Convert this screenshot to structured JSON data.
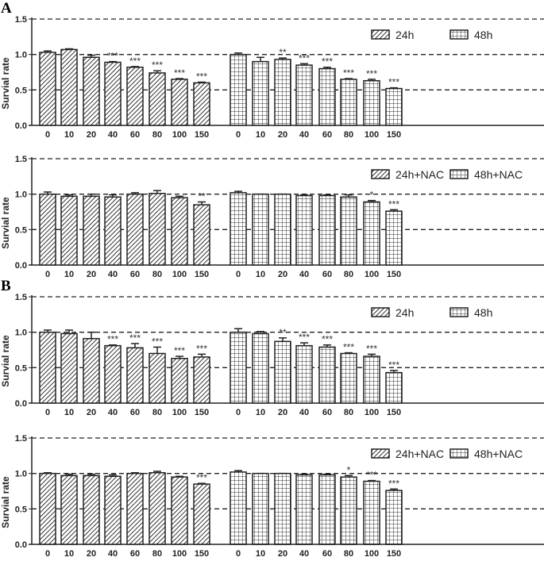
{
  "chart_data": [
    {
      "panel": "A",
      "type": "bar",
      "ylabel": "Survial rate",
      "ylim": [
        0,
        1.5
      ],
      "yticks": [
        "0.0",
        "0.5",
        "1.0",
        "1.5"
      ],
      "grid": "dashed at 0.5, 1.0, 1.5",
      "legend_position": "top-right",
      "categories": [
        "0",
        "10",
        "20",
        "40",
        "60",
        "80",
        "100",
        "150"
      ],
      "series": [
        {
          "name": "24h",
          "pattern": "diagonal-hatch",
          "values": [
            1.03,
            1.07,
            0.96,
            0.89,
            0.82,
            0.74,
            0.65,
            0.6
          ],
          "errors": [
            0.02,
            0.01,
            0.03,
            0.01,
            0.01,
            0.03,
            0.01,
            0.01
          ],
          "significance": [
            "",
            "",
            "",
            "***",
            "***",
            "***",
            "***",
            "***"
          ]
        },
        {
          "name": "48h",
          "pattern": "grid",
          "values": [
            1.0,
            0.9,
            0.93,
            0.85,
            0.8,
            0.65,
            0.63,
            0.52
          ],
          "errors": [
            0.02,
            0.06,
            0.02,
            0.02,
            0.02,
            0.01,
            0.02,
            0.01
          ],
          "significance": [
            "",
            "",
            "**",
            "***",
            "***",
            "***",
            "***",
            "***"
          ]
        }
      ]
    },
    {
      "panel": "",
      "type": "bar",
      "ylabel": "Survial rate",
      "ylim": [
        0,
        1.5
      ],
      "yticks": [
        "0.0",
        "0.5",
        "1.0",
        "1.5"
      ],
      "grid": "dashed at 0.5, 1.0, 1.5",
      "legend_position": "top-right",
      "categories": [
        "0",
        "10",
        "20",
        "40",
        "60",
        "80",
        "100",
        "150"
      ],
      "series": [
        {
          "name": "24h+NAC",
          "pattern": "diagonal-hatch",
          "values": [
            1.0,
            0.97,
            0.97,
            0.96,
            1.0,
            1.01,
            0.95,
            0.85
          ],
          "errors": [
            0.03,
            0.02,
            0.03,
            0.03,
            0.02,
            0.04,
            0.02,
            0.04
          ],
          "significance": [
            "",
            "",
            "",
            "",
            "",
            "",
            "",
            "**"
          ]
        },
        {
          "name": "48h+NAC",
          "pattern": "grid",
          "values": [
            1.02,
            1.0,
            1.0,
            0.98,
            0.98,
            0.96,
            0.89,
            0.76
          ],
          "errors": [
            0.02,
            0.0,
            0.0,
            0.01,
            0.01,
            0.03,
            0.02,
            0.02
          ],
          "significance": [
            "",
            "",
            "",
            "",
            "",
            "",
            "*",
            "***"
          ]
        }
      ]
    },
    {
      "panel": "B",
      "type": "bar",
      "ylabel": "Survial rate",
      "ylim": [
        0,
        1.5
      ],
      "yticks": [
        "0.0",
        "0.5",
        "1.0",
        "1.5"
      ],
      "grid": "dashed at 0.5, 1.0, 1.5",
      "legend_position": "top-right",
      "categories": [
        "0",
        "10",
        "20",
        "40",
        "60",
        "80",
        "100",
        "150"
      ],
      "series": [
        {
          "name": "24h",
          "pattern": "diagonal-hatch",
          "values": [
            1.0,
            0.98,
            0.91,
            0.81,
            0.78,
            0.7,
            0.63,
            0.65
          ],
          "errors": [
            0.03,
            0.05,
            0.09,
            0.01,
            0.06,
            0.09,
            0.03,
            0.04
          ],
          "significance": [
            "",
            "",
            "",
            "***",
            "***",
            "***",
            "***",
            "***"
          ]
        },
        {
          "name": "48h",
          "pattern": "grid",
          "values": [
            1.0,
            0.98,
            0.87,
            0.81,
            0.79,
            0.7,
            0.66,
            0.43
          ],
          "errors": [
            0.05,
            0.03,
            0.05,
            0.04,
            0.03,
            0.01,
            0.03,
            0.03
          ],
          "significance": [
            "",
            "",
            "**",
            "***",
            "***",
            "***",
            "***",
            "***"
          ]
        }
      ]
    },
    {
      "panel": "",
      "type": "bar",
      "ylabel": "Survial rate",
      "ylim": [
        0,
        1.5
      ],
      "yticks": [
        "0.0",
        "0.5",
        "1.0",
        "1.5"
      ],
      "grid": "dashed at 0.5, 1.0, 1.5",
      "legend_position": "top-right",
      "categories": [
        "0",
        "10",
        "20",
        "40",
        "60",
        "80",
        "100",
        "150"
      ],
      "series": [
        {
          "name": "24h+NAC",
          "pattern": "diagonal-hatch",
          "values": [
            1.0,
            0.97,
            0.97,
            0.96,
            1.0,
            1.01,
            0.95,
            0.85
          ],
          "errors": [
            0.01,
            0.02,
            0.02,
            0.02,
            0.01,
            0.02,
            0.01,
            0.01
          ],
          "significance": [
            "",
            "",
            "",
            "",
            "",
            "",
            "",
            "***"
          ]
        },
        {
          "name": "48h+NAC",
          "pattern": "grid",
          "values": [
            1.02,
            1.0,
            1.0,
            0.98,
            0.98,
            0.95,
            0.89,
            0.76
          ],
          "errors": [
            0.02,
            0.0,
            0.0,
            0.01,
            0.01,
            0.02,
            0.01,
            0.02
          ],
          "significance": [
            "",
            "",
            "",
            "",
            "",
            "*",
            "***",
            "***"
          ]
        }
      ]
    }
  ]
}
